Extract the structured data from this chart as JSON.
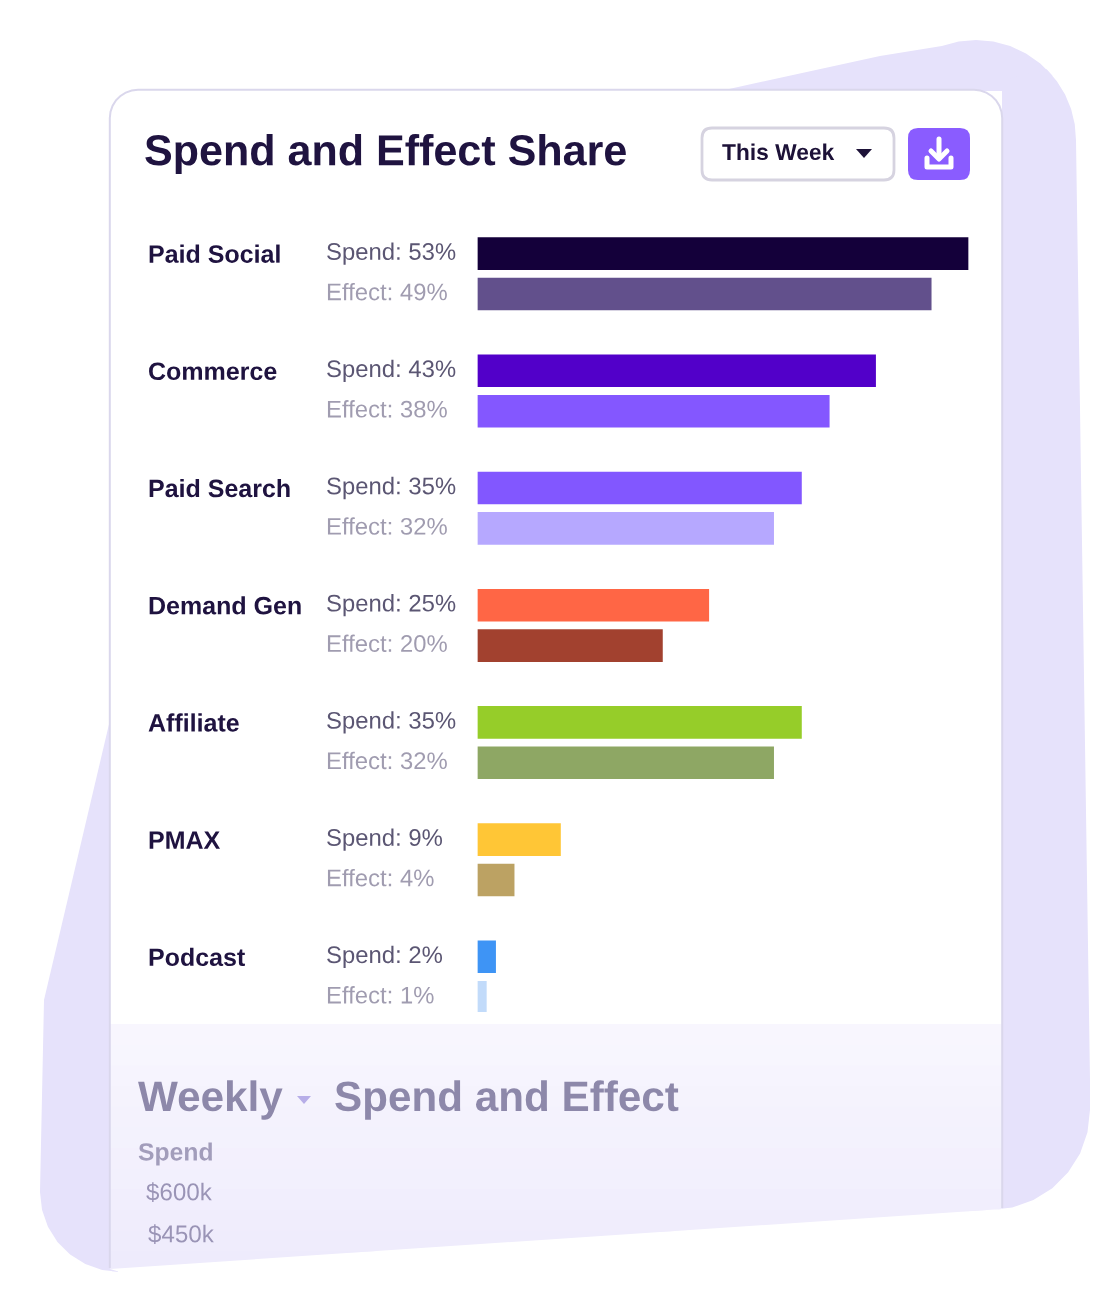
{
  "chart_data": [
    {
      "type": "bar",
      "orientation": "horizontal",
      "title": "Spend and Effect Share",
      "annotations": [
        "This Week"
      ],
      "categories": [
        "Paid Social",
        "Commerce",
        "Paid Search",
        "Demand Gen",
        "Affiliate",
        "PMAX",
        "Podcast"
      ],
      "series": [
        {
          "values": [
            53,
            43,
            35,
            25,
            35,
            9,
            2
          ],
          "colors": [
            "#14003a",
            "#5200c9",
            "#8257ff",
            "#ff6645",
            "#96cd29",
            "#ffc636",
            "#3e94f5"
          ],
          "value_labels": [
            "Spend: 53%",
            "Spend: 43%",
            "Spend: 35%",
            "Spend: 25%",
            "Spend: 35%",
            "Spend: 9%",
            "Spend: 2%"
          ]
        },
        {
          "values": [
            49,
            38,
            32,
            20,
            32,
            4,
            1
          ],
          "colors": [
            "#62508c",
            "#8457ff",
            "#b6a8ff",
            "#a2412f",
            "#8ea764",
            "#bca263",
            "#c2dbfa"
          ],
          "value_labels": [
            "Effect: 49%",
            "Effect: 38%",
            "Effect: 32%",
            "Effect: 20%",
            "Effect: 32%",
            "Effect: 4%",
            "Effect: 1%"
          ]
        }
      ],
      "tick_labels": "y"
    },
    {
      "type": "other",
      "title": "Spend and Effect",
      "annotations": [
        "Weekly",
        "Spend",
        "$600k",
        "$450k"
      ]
    }
  ]
}
